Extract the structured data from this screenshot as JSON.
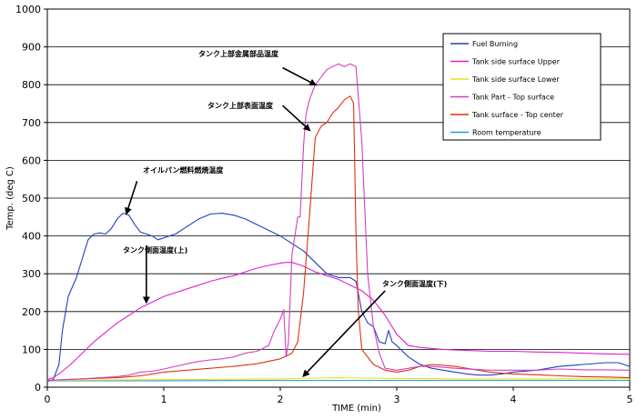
{
  "chart_data": {
    "type": "line",
    "xlabel": "TIME (min)",
    "ylabel": "Temp. (deg C)",
    "xlim": [
      0,
      5
    ],
    "ylim": [
      0,
      1000
    ],
    "xticks": [
      "0",
      "1",
      "2",
      "3",
      "4",
      "5"
    ],
    "yticks": [
      "0",
      "100",
      "200",
      "300",
      "400",
      "500",
      "600",
      "700",
      "800",
      "900",
      "1000"
    ],
    "grid": "horizontal",
    "legend_position": "top-right",
    "series": [
      {
        "name": "Fuel Burning",
        "color": "#2040c0",
        "points": [
          [
            0,
            15
          ],
          [
            0.05,
            20
          ],
          [
            0.1,
            60
          ],
          [
            0.13,
            150
          ],
          [
            0.18,
            240
          ],
          [
            0.25,
            290
          ],
          [
            0.3,
            340
          ],
          [
            0.35,
            390
          ],
          [
            0.4,
            405
          ],
          [
            0.45,
            408
          ],
          [
            0.5,
            405
          ],
          [
            0.55,
            420
          ],
          [
            0.6,
            445
          ],
          [
            0.65,
            460
          ],
          [
            0.7,
            455
          ],
          [
            0.75,
            430
          ],
          [
            0.8,
            410
          ],
          [
            0.85,
            405
          ],
          [
            0.9,
            400
          ],
          [
            0.95,
            390
          ],
          [
            1.0,
            395
          ],
          [
            1.1,
            405
          ],
          [
            1.2,
            425
          ],
          [
            1.3,
            445
          ],
          [
            1.4,
            458
          ],
          [
            1.5,
            460
          ],
          [
            1.6,
            455
          ],
          [
            1.7,
            445
          ],
          [
            1.8,
            430
          ],
          [
            1.9,
            415
          ],
          [
            2.0,
            400
          ],
          [
            2.1,
            380
          ],
          [
            2.2,
            360
          ],
          [
            2.3,
            330
          ],
          [
            2.4,
            300
          ],
          [
            2.5,
            290
          ],
          [
            2.6,
            290
          ],
          [
            2.65,
            280
          ],
          [
            2.7,
            200
          ],
          [
            2.75,
            170
          ],
          [
            2.8,
            160
          ],
          [
            2.85,
            120
          ],
          [
            2.9,
            115
          ],
          [
            2.93,
            150
          ],
          [
            2.96,
            120
          ],
          [
            3.0,
            110
          ],
          [
            3.1,
            80
          ],
          [
            3.2,
            60
          ],
          [
            3.3,
            50
          ],
          [
            3.4,
            45
          ],
          [
            3.5,
            40
          ],
          [
            3.6,
            35
          ],
          [
            3.7,
            32
          ],
          [
            3.8,
            32
          ],
          [
            3.9,
            35
          ],
          [
            4.0,
            40
          ],
          [
            4.2,
            45
          ],
          [
            4.4,
            55
          ],
          [
            4.6,
            60
          ],
          [
            4.8,
            65
          ],
          [
            4.9,
            65
          ],
          [
            5.0,
            55
          ]
        ]
      },
      {
        "name": "Tank side surface Upper",
        "color": "#e020d0",
        "points": [
          [
            0,
            20
          ],
          [
            0.05,
            25
          ],
          [
            0.1,
            35
          ],
          [
            0.2,
            60
          ],
          [
            0.3,
            90
          ],
          [
            0.4,
            120
          ],
          [
            0.5,
            145
          ],
          [
            0.6,
            170
          ],
          [
            0.7,
            190
          ],
          [
            0.8,
            210
          ],
          [
            0.9,
            225
          ],
          [
            1.0,
            240
          ],
          [
            1.1,
            250
          ],
          [
            1.2,
            260
          ],
          [
            1.3,
            270
          ],
          [
            1.4,
            280
          ],
          [
            1.5,
            288
          ],
          [
            1.6,
            295
          ],
          [
            1.7,
            305
          ],
          [
            1.8,
            315
          ],
          [
            1.9,
            322
          ],
          [
            2.0,
            328
          ],
          [
            2.05,
            330
          ],
          [
            2.1,
            330
          ],
          [
            2.2,
            320
          ],
          [
            2.3,
            305
          ],
          [
            2.4,
            295
          ],
          [
            2.5,
            285
          ],
          [
            2.6,
            270
          ],
          [
            2.7,
            255
          ],
          [
            2.8,
            230
          ],
          [
            2.9,
            190
          ],
          [
            3.0,
            140
          ],
          [
            3.1,
            110
          ],
          [
            3.2,
            105
          ],
          [
            3.4,
            100
          ],
          [
            3.6,
            97
          ],
          [
            3.8,
            95
          ],
          [
            4.0,
            95
          ],
          [
            4.2,
            93
          ],
          [
            4.4,
            92
          ],
          [
            4.6,
            90
          ],
          [
            4.8,
            88
          ],
          [
            5.0,
            87
          ]
        ]
      },
      {
        "name": "Tank side surface Lower",
        "color": "#e8e020",
        "points": [
          [
            0,
            18
          ],
          [
            0.5,
            19
          ],
          [
            1.0,
            20
          ],
          [
            1.5,
            21
          ],
          [
            2.0,
            22
          ],
          [
            2.3,
            24
          ],
          [
            2.5,
            25
          ],
          [
            2.7,
            24
          ],
          [
            3.0,
            23
          ],
          [
            3.5,
            22
          ],
          [
            4.0,
            22
          ],
          [
            4.5,
            22
          ],
          [
            5.0,
            22
          ]
        ]
      },
      {
        "name": "Tank Part - Top surface",
        "color": "#d040c0",
        "points": [
          [
            0,
            18
          ],
          [
            0.3,
            22
          ],
          [
            0.6,
            28
          ],
          [
            0.7,
            32
          ],
          [
            0.8,
            40
          ],
          [
            0.9,
            42
          ],
          [
            1.0,
            48
          ],
          [
            1.1,
            55
          ],
          [
            1.2,
            62
          ],
          [
            1.3,
            68
          ],
          [
            1.4,
            72
          ],
          [
            1.5,
            75
          ],
          [
            1.6,
            80
          ],
          [
            1.7,
            90
          ],
          [
            1.8,
            95
          ],
          [
            1.9,
            110
          ],
          [
            1.95,
            150
          ],
          [
            2.0,
            180
          ],
          [
            2.03,
            205
          ],
          [
            2.05,
            80
          ],
          [
            2.07,
            120
          ],
          [
            2.1,
            350
          ],
          [
            2.15,
            450
          ],
          [
            2.17,
            450
          ],
          [
            2.2,
            640
          ],
          [
            2.22,
            720
          ],
          [
            2.25,
            760
          ],
          [
            2.3,
            800
          ],
          [
            2.35,
            820
          ],
          [
            2.4,
            840
          ],
          [
            2.45,
            848
          ],
          [
            2.5,
            855
          ],
          [
            2.55,
            848
          ],
          [
            2.6,
            855
          ],
          [
            2.65,
            848
          ],
          [
            2.7,
            650
          ],
          [
            2.75,
            300
          ],
          [
            2.8,
            160
          ],
          [
            2.85,
            90
          ],
          [
            2.9,
            50
          ],
          [
            3.0,
            45
          ],
          [
            3.1,
            50
          ],
          [
            3.2,
            55
          ],
          [
            3.3,
            55
          ],
          [
            3.5,
            50
          ],
          [
            3.8,
            45
          ],
          [
            4.0,
            45
          ],
          [
            4.2,
            45
          ],
          [
            4.4,
            48
          ],
          [
            4.6,
            46
          ],
          [
            4.8,
            46
          ],
          [
            5.0,
            45
          ]
        ]
      },
      {
        "name": "Tank surface - Top center",
        "color": "#e03010",
        "points": [
          [
            0,
            18
          ],
          [
            0.3,
            22
          ],
          [
            0.6,
            25
          ],
          [
            0.8,
            30
          ],
          [
            1.0,
            40
          ],
          [
            1.2,
            45
          ],
          [
            1.4,
            50
          ],
          [
            1.6,
            55
          ],
          [
            1.8,
            62
          ],
          [
            2.0,
            75
          ],
          [
            2.1,
            90
          ],
          [
            2.15,
            120
          ],
          [
            2.2,
            250
          ],
          [
            2.25,
            450
          ],
          [
            2.3,
            660
          ],
          [
            2.35,
            690
          ],
          [
            2.4,
            700
          ],
          [
            2.45,
            725
          ],
          [
            2.5,
            740
          ],
          [
            2.55,
            760
          ],
          [
            2.6,
            770
          ],
          [
            2.63,
            750
          ],
          [
            2.65,
            400
          ],
          [
            2.67,
            200
          ],
          [
            2.7,
            100
          ],
          [
            2.8,
            60
          ],
          [
            2.9,
            45
          ],
          [
            3.0,
            40
          ],
          [
            3.1,
            45
          ],
          [
            3.2,
            55
          ],
          [
            3.3,
            60
          ],
          [
            3.4,
            58
          ],
          [
            3.5,
            55
          ],
          [
            3.6,
            50
          ],
          [
            3.8,
            40
          ],
          [
            4.0,
            35
          ],
          [
            4.2,
            33
          ],
          [
            4.4,
            30
          ],
          [
            4.6,
            28
          ],
          [
            4.8,
            27
          ],
          [
            5.0,
            25
          ]
        ]
      },
      {
        "name": "Room temperature",
        "color": "#20a0e0",
        "points": [
          [
            0,
            17
          ],
          [
            1,
            17
          ],
          [
            2,
            18
          ],
          [
            3,
            18
          ],
          [
            4,
            18
          ],
          [
            5,
            18
          ]
        ]
      }
    ],
    "annotations": [
      {
        "text": "タンク上部金属部品温度",
        "arrow_from": [
          2.02,
          845
        ],
        "arrow_to": [
          2.3,
          800
        ]
      },
      {
        "text": "タンク上部表面温度",
        "arrow_from": [
          2.02,
          745
        ],
        "arrow_to": [
          2.25,
          680
        ]
      },
      {
        "text": "オイルパン燃料燃焼温度",
        "arrow_from": [
          0.77,
          545
        ],
        "arrow_to": [
          0.68,
          460
        ]
      },
      {
        "text": "タンク側面温度(上)",
        "arrow_from": [
          0.85,
          375
        ],
        "arrow_to": [
          0.85,
          225
        ]
      },
      {
        "text": "タンク側面温度(下)",
        "arrow_from": [
          2.9,
          255
        ],
        "arrow_to": [
          2.2,
          30
        ]
      }
    ]
  }
}
